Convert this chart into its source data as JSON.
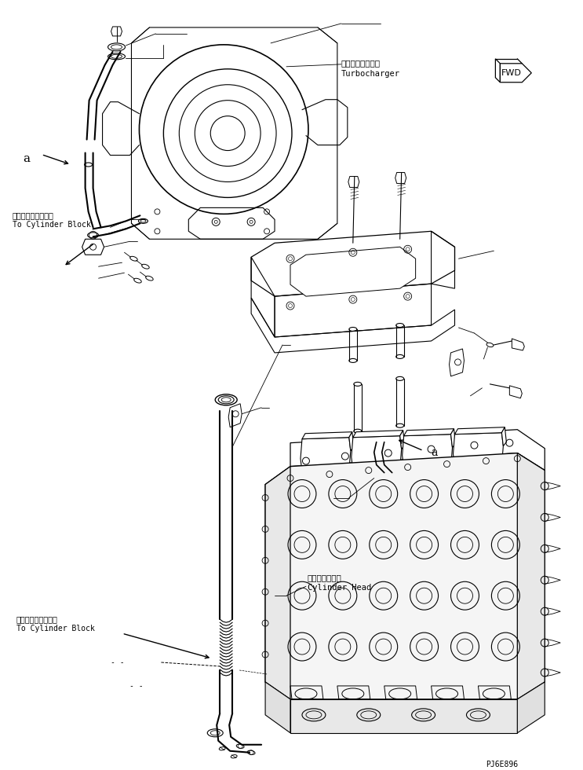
{
  "background_color": "#ffffff",
  "line_color": "#000000",
  "fig_width": 7.43,
  "fig_height": 9.8,
  "dpi": 100,
  "labels": {
    "turbocharger_jp": "ターボチャージャ",
    "turbocharger_en": "Turbocharger",
    "cylinder_block_jp1": "シリンダブロックへ",
    "cylinder_block_en1": "To Cylinder Block",
    "cylinder_head_jp": "シリンダヘッド",
    "cylinder_head_en": "Cylinder Head",
    "cylinder_block_jp2": "シリンダブロックへ",
    "cylinder_block_en2": "To Cylinder Block",
    "part_code": "PJ6E896"
  }
}
